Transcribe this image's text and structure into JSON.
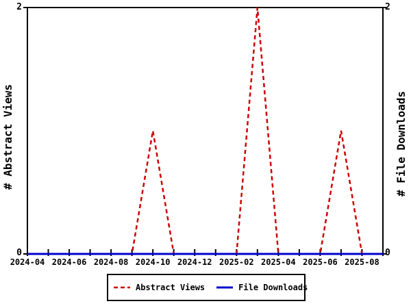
{
  "chart_data": {
    "type": "line",
    "x": [
      "2024-04",
      "2024-05",
      "2024-06",
      "2024-07",
      "2024-08",
      "2024-09",
      "2024-10",
      "2024-11",
      "2024-12",
      "2025-01",
      "2025-02",
      "2025-03",
      "2025-04",
      "2025-05",
      "2025-06",
      "2025-07",
      "2025-08",
      "2025-09"
    ],
    "series": [
      {
        "name": "Abstract Views",
        "color": "#cc0000",
        "style": "dashed",
        "values": [
          0,
          0,
          0,
          0,
          0,
          0,
          1,
          0,
          0,
          0,
          0,
          2,
          0,
          0,
          0,
          1,
          0,
          0
        ]
      },
      {
        "name": "File Downloads",
        "color": "#0000cc",
        "style": "solid",
        "values": [
          0,
          0,
          0,
          0,
          0,
          0,
          0,
          0,
          0,
          0,
          0,
          0,
          0,
          0,
          0,
          0,
          0,
          0
        ]
      }
    ],
    "ylabel_left": "# Abstract Views",
    "ylabel_right": "# File Downloads",
    "ylim": [
      0,
      2
    ],
    "yticks": [
      0,
      2
    ],
    "ytick_labels": {
      "top": "2",
      "bottom": "0"
    },
    "xticks": [
      {
        "i": 0,
        "label": "2024-04"
      },
      {
        "i": 2,
        "label": "2024-06"
      },
      {
        "i": 4,
        "label": "2024-08"
      },
      {
        "i": 6,
        "label": "2024-10"
      },
      {
        "i": 8,
        "label": "2024-12"
      },
      {
        "i": 10,
        "label": "2025-02"
      },
      {
        "i": 12,
        "label": "2025-04"
      },
      {
        "i": 14,
        "label": "2025-06"
      },
      {
        "i": 16,
        "label": "2025-08"
      }
    ],
    "grid": false,
    "legend_position": "bottom",
    "axis_color": "#000000",
    "background_color": "#ffffff"
  }
}
